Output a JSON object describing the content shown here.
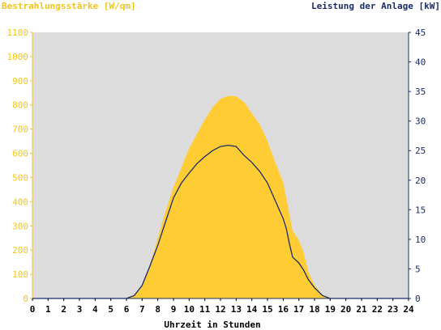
{
  "chart_data": {
    "type": "area",
    "left_axis_label": "Bestrahlungsstärke [W/qm]",
    "right_axis_label": "Leistung der Anlage [kW]",
    "xlabel": "Uhrzeit in Stunden",
    "xlim": [
      0,
      24
    ],
    "ylim_left": [
      0,
      1100
    ],
    "ylim_right": [
      0,
      45
    ],
    "x_ticks": [
      0,
      1,
      2,
      3,
      4,
      5,
      6,
      7,
      8,
      9,
      10,
      11,
      12,
      13,
      14,
      15,
      16,
      17,
      18,
      19,
      20,
      21,
      22,
      23,
      24
    ],
    "left_ticks": [
      0,
      100,
      200,
      300,
      400,
      500,
      600,
      700,
      800,
      900,
      1000,
      1100
    ],
    "right_ticks": [
      0,
      5,
      10,
      15,
      20,
      25,
      30,
      35,
      40,
      45
    ],
    "grid": false,
    "colors": {
      "plot_bg": "#dcdcdc",
      "irradiance": "#ffcc33",
      "power": "#1a2d6b",
      "left_axis": "#f5c518",
      "right_axis": "#1a2d6b"
    },
    "series": [
      {
        "axis": "left",
        "style": "area",
        "points": [
          [
            0,
            0
          ],
          [
            6.0,
            0
          ],
          [
            6.5,
            10
          ],
          [
            7.0,
            50
          ],
          [
            7.5,
            140
          ],
          [
            8.0,
            250
          ],
          [
            8.5,
            360
          ],
          [
            9.0,
            460
          ],
          [
            9.5,
            540
          ],
          [
            10.0,
            620
          ],
          [
            10.5,
            680
          ],
          [
            11.0,
            740
          ],
          [
            11.5,
            790
          ],
          [
            12.0,
            825
          ],
          [
            12.5,
            838
          ],
          [
            13.0,
            835
          ],
          [
            13.5,
            812
          ],
          [
            14.0,
            765
          ],
          [
            14.5,
            720
          ],
          [
            15.0,
            650
          ],
          [
            15.5,
            560
          ],
          [
            16.0,
            480
          ],
          [
            16.3,
            380
          ],
          [
            16.6,
            280
          ],
          [
            17.0,
            240
          ],
          [
            17.3,
            190
          ],
          [
            17.6,
            110
          ],
          [
            18.0,
            55
          ],
          [
            18.5,
            15
          ],
          [
            19.0,
            0
          ],
          [
            24,
            0
          ]
        ]
      },
      {
        "axis": "right",
        "style": "line",
        "points": [
          [
            0,
            0
          ],
          [
            6.0,
            0
          ],
          [
            6.5,
            0.5
          ],
          [
            7.0,
            2.2
          ],
          [
            7.5,
            5.5
          ],
          [
            8.0,
            9.0
          ],
          [
            8.5,
            13.0
          ],
          [
            9.0,
            17.0
          ],
          [
            9.5,
            19.5
          ],
          [
            10.0,
            21.2
          ],
          [
            10.5,
            22.8
          ],
          [
            11.0,
            24.0
          ],
          [
            11.5,
            25.0
          ],
          [
            12.0,
            25.7
          ],
          [
            12.5,
            25.9
          ],
          [
            13.0,
            25.7
          ],
          [
            13.5,
            24.2
          ],
          [
            14.0,
            23.0
          ],
          [
            14.5,
            21.5
          ],
          [
            15.0,
            19.5
          ],
          [
            15.5,
            16.5
          ],
          [
            16.0,
            13.5
          ],
          [
            16.2,
            11.8
          ],
          [
            16.4,
            9.2
          ],
          [
            16.6,
            7.0
          ],
          [
            17.0,
            6.0
          ],
          [
            17.3,
            4.8
          ],
          [
            17.6,
            3.2
          ],
          [
            18.0,
            1.8
          ],
          [
            18.5,
            0.5
          ],
          [
            19.0,
            0
          ],
          [
            24,
            0
          ]
        ]
      }
    ]
  }
}
